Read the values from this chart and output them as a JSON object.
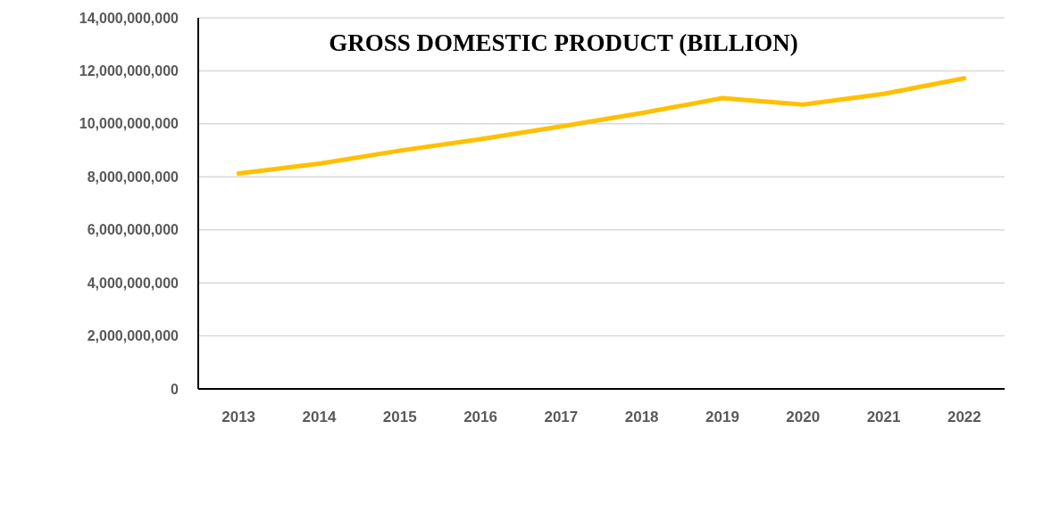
{
  "chart_data": {
    "type": "line",
    "title": "GROSS DOMESTIC PRODUCT (BILLION)",
    "categories": [
      "2013",
      "2014",
      "2015",
      "2016",
      "2017",
      "2018",
      "2019",
      "2020",
      "2021",
      "2022"
    ],
    "series": [
      {
        "color": "#ffc000",
        "values": [
          8130000000,
          8500000000,
          8990000000,
          9420000000,
          9900000000,
          10410000000,
          10970000000,
          10730000000,
          11130000000,
          11720000000
        ]
      }
    ],
    "ylim": [
      0,
      14000000000
    ],
    "yticks": [
      {
        "value": 0,
        "label": "0"
      },
      {
        "value": 2000000000,
        "label": "2,000,000,000"
      },
      {
        "value": 4000000000,
        "label": "4,000,000,000"
      },
      {
        "value": 6000000000,
        "label": "6,000,000,000"
      },
      {
        "value": 8000000000,
        "label": "8,000,000,000"
      },
      {
        "value": 10000000000,
        "label": "10,000,000,000"
      },
      {
        "value": 12000000000,
        "label": "12,000,000,000"
      },
      {
        "value": 14000000000,
        "label": "14,000,000,000"
      }
    ],
    "grid": "y",
    "marker": "none",
    "line_style": "solid"
  }
}
